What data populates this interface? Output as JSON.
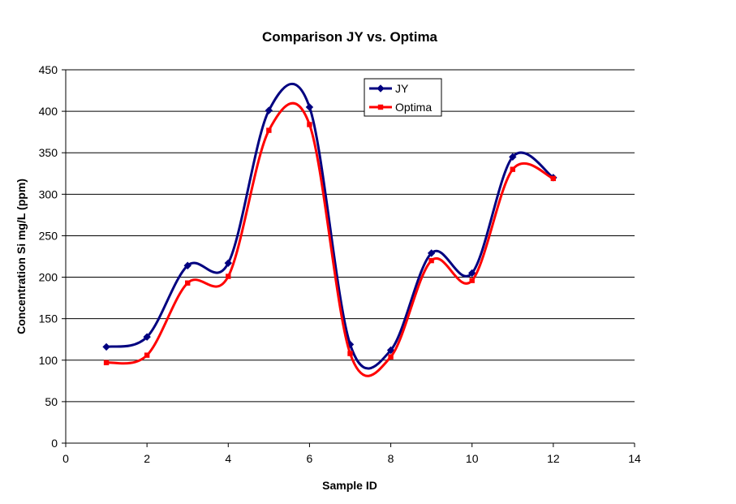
{
  "chart_data": {
    "type": "line",
    "title": "Comparison JY vs. Optima",
    "xlabel": "Sample ID",
    "ylabel": "Concentration Si mg/L (ppm)",
    "xlim": [
      0,
      14
    ],
    "ylim": [
      0,
      450
    ],
    "xticks": [
      0,
      2,
      4,
      6,
      8,
      10,
      12,
      14
    ],
    "yticks": [
      0,
      50,
      100,
      150,
      200,
      250,
      300,
      350,
      400,
      450
    ],
    "grid": "horizontal",
    "legend_position": "top-center",
    "smoothed": true,
    "series": [
      {
        "name": "JY",
        "color": "#000080",
        "marker": "diamond",
        "x": [
          1,
          2,
          3,
          4,
          5,
          6,
          7,
          8,
          9,
          10,
          11,
          12
        ],
        "values": [
          116,
          128,
          214,
          217,
          401,
          405,
          119,
          112,
          229,
          205,
          345,
          320
        ]
      },
      {
        "name": "Optima",
        "color": "#ff0000",
        "marker": "square",
        "x": [
          1,
          2,
          3,
          4,
          5,
          6,
          7,
          8,
          9,
          10,
          11,
          12
        ],
        "values": [
          97,
          106,
          193,
          201,
          377,
          384,
          108,
          104,
          220,
          196,
          330,
          319
        ]
      }
    ]
  }
}
